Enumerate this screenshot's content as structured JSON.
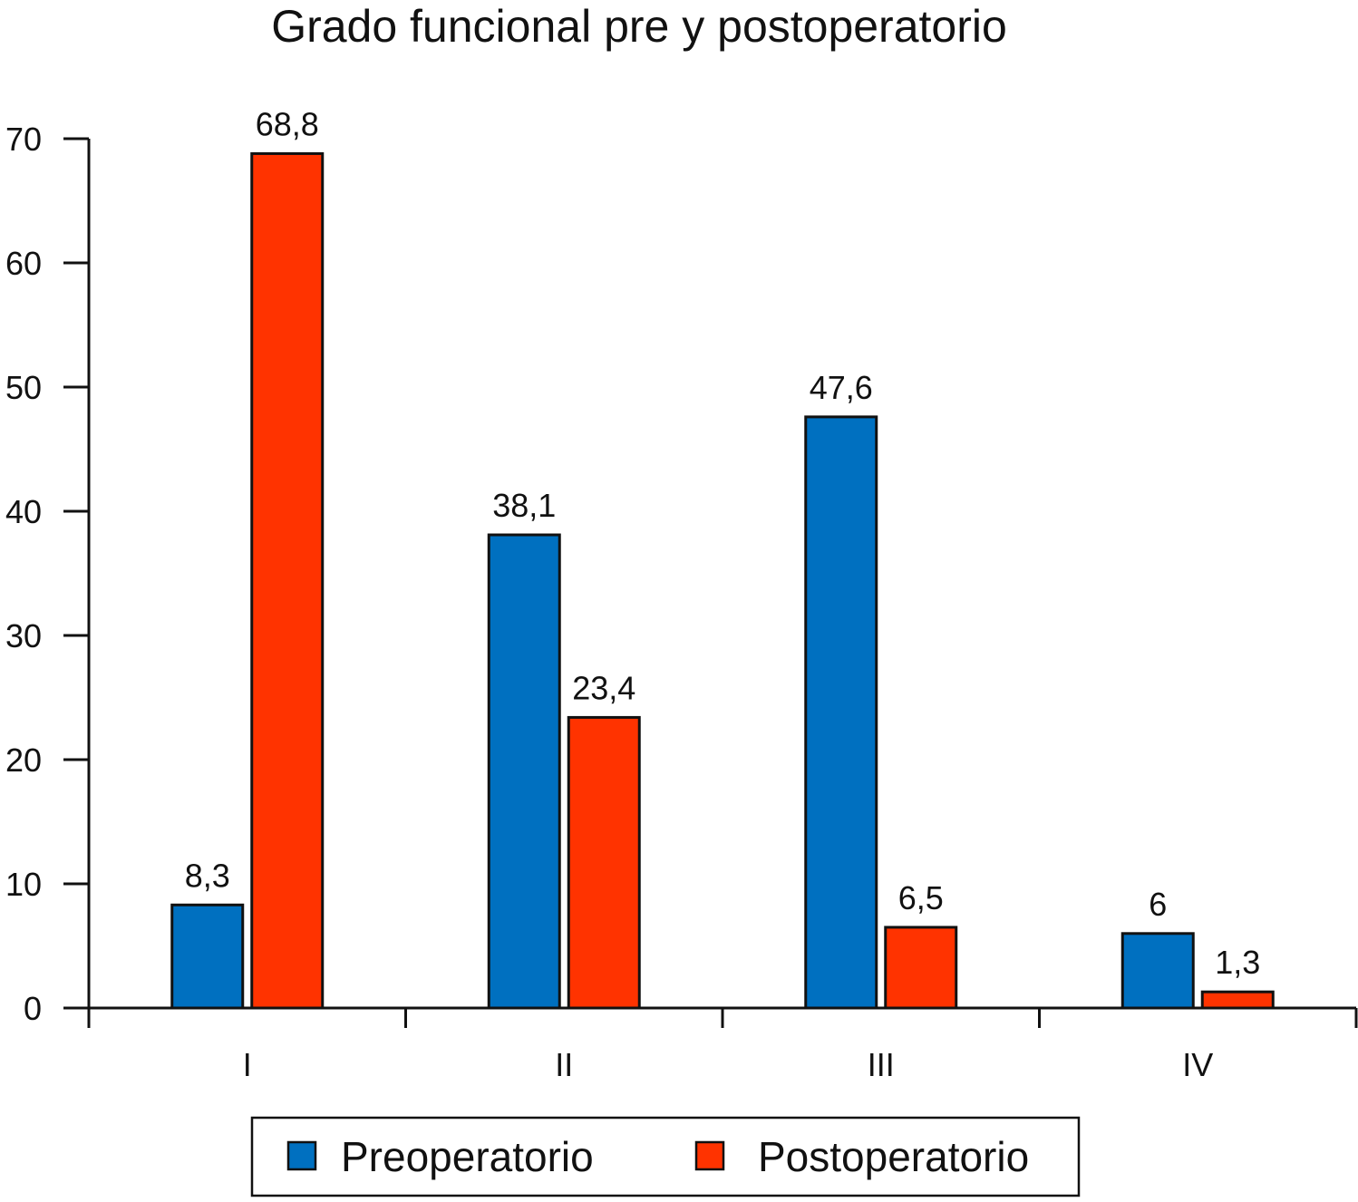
{
  "chart_data": {
    "type": "bar",
    "title": "Grado funcional pre y postoperatorio",
    "xlabel": "",
    "ylabel": "",
    "categories": [
      "I",
      "II",
      "III",
      "IV"
    ],
    "series": [
      {
        "name": "Preoperatorio",
        "color": "#0070C0",
        "values": [
          8.3,
          38.1,
          47.6,
          6
        ],
        "labels": [
          "8,3",
          "38,1",
          "47,6",
          "6"
        ]
      },
      {
        "name": "Postoperatorio",
        "color": "#FF3300",
        "values": [
          68.8,
          23.4,
          6.5,
          1.3
        ],
        "labels": [
          "68,8",
          "23,4",
          "6,5",
          "1,3"
        ]
      }
    ],
    "ylim": [
      0,
      70
    ],
    "yticks": [
      "0",
      "10",
      "20",
      "30",
      "40",
      "50",
      "60",
      "70"
    ],
    "grid": false,
    "legend_position": "bottom",
    "legend_border": true
  }
}
